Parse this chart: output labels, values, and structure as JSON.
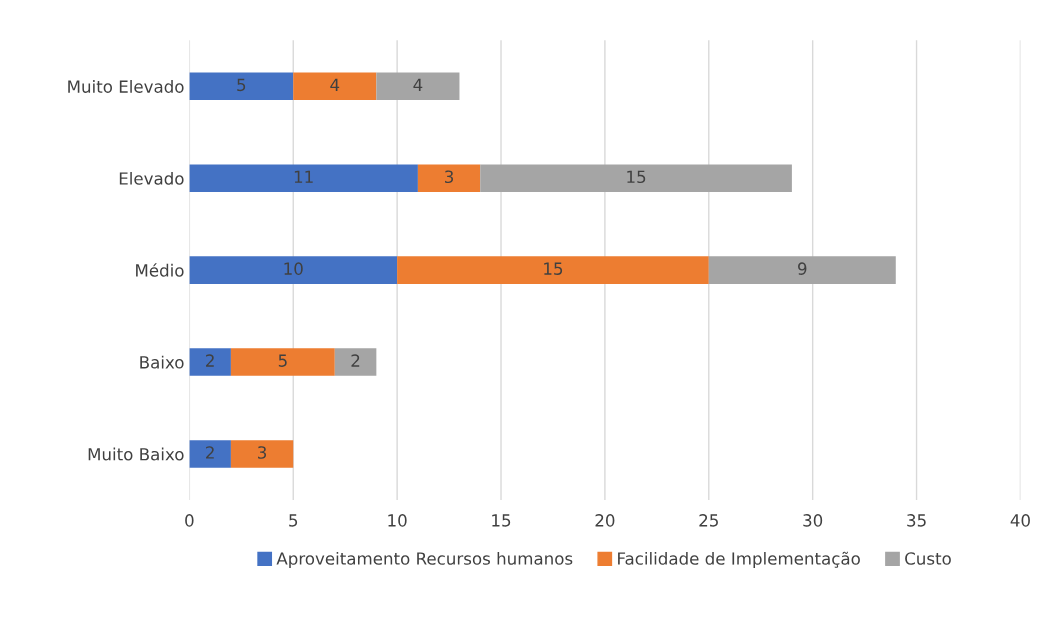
{
  "chart_data": {
    "type": "bar",
    "orientation": "horizontal",
    "stacked": true,
    "categories": [
      "Muito Elevado",
      "Elevado",
      "Médio",
      "Baixo",
      "Muito Baixo"
    ],
    "series": [
      {
        "name": "Aproveitamento Recursos humanos",
        "color": "#4472c4",
        "values": [
          5,
          11,
          10,
          2,
          2
        ]
      },
      {
        "name": "Facilidade de Implementação",
        "color": "#ed7d31",
        "values": [
          4,
          3,
          15,
          5,
          3
        ]
      },
      {
        "name": "Custo",
        "color": "#a5a5a5",
        "values": [
          4,
          15,
          9,
          2,
          null
        ]
      }
    ],
    "xlim": [
      0,
      40
    ],
    "xticks": [
      0,
      5,
      10,
      15,
      20,
      25,
      30,
      35,
      40
    ],
    "grid": "x",
    "legend": "bottom",
    "data_labels": true
  }
}
